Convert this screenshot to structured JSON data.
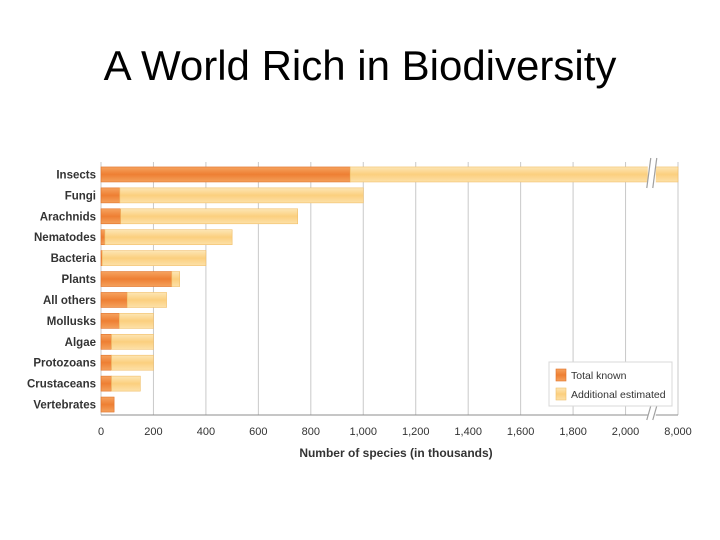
{
  "slide": {
    "title": "A World Rich in Biodiversity"
  },
  "chart_data": {
    "type": "bar",
    "orientation": "horizontal",
    "stacked": true,
    "categories": [
      "Insects",
      "Fungi",
      "Arachnids",
      "Nematodes",
      "Bacteria",
      "Plants",
      "All others",
      "Mollusks",
      "Algae",
      "Protozoans",
      "Crustaceans",
      "Vertebrates"
    ],
    "series": [
      {
        "name": "Total known",
        "color": "#ef8a3c",
        "values": [
          950,
          72,
          75,
          15,
          5,
          270,
          100,
          70,
          40,
          40,
          40,
          50
        ]
      },
      {
        "name": "Additional estimated",
        "color": "#fcd58e",
        "values": [
          7050,
          928,
          675,
          485,
          395,
          30,
          150,
          130,
          160,
          160,
          110,
          0
        ]
      }
    ],
    "xlabel": "Number of species (in thousands)",
    "ylabel": "",
    "xlim": [
      0,
      2200
    ],
    "axis_break": {
      "display_value": 2100,
      "label": "8,000"
    },
    "xticks": [
      0,
      200,
      400,
      600,
      800,
      1000,
      1200,
      1400,
      1600,
      1800,
      2000
    ],
    "xtick_labels": [
      "0",
      "200",
      "400",
      "600",
      "800",
      "1,000",
      "1,200",
      "1,400",
      "1,600",
      "1,800",
      "2,000",
      "8,000"
    ],
    "grid": true,
    "legend_position": "bottom-right"
  }
}
